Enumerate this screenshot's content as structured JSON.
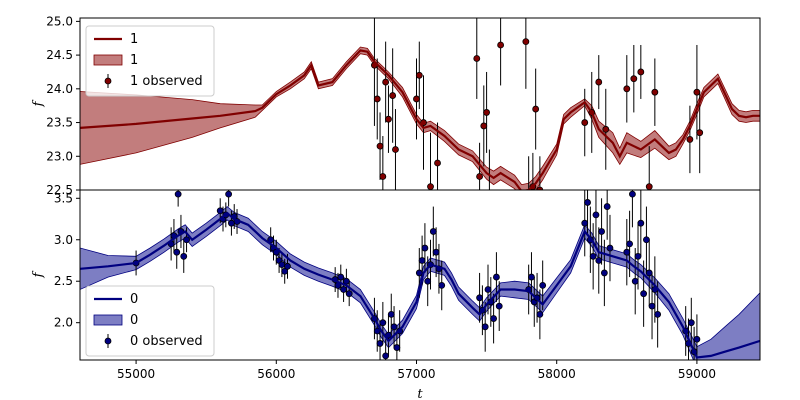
{
  "chart_data": [
    {
      "type": "line",
      "panel": "top",
      "ylabel": "f",
      "xlim": [
        54600,
        59450
      ],
      "ylim": [
        22.5,
        25.05
      ],
      "yticks": [
        22.5,
        23.0,
        23.5,
        24.0,
        24.5,
        25.0
      ],
      "ytick_labels": [
        "22.5",
        "23.0",
        "23.5",
        "24.0",
        "24.5",
        "25.0"
      ],
      "legend_position": "top-left",
      "colors": {
        "line": "#800000",
        "band": "#b35c5c",
        "band_edge": "#800000",
        "points": "#800000"
      },
      "legend": [
        {
          "kind": "line",
          "label": "1"
        },
        {
          "kind": "band",
          "label": "1"
        },
        {
          "kind": "errorbar",
          "label": "1 observed"
        }
      ],
      "series": [
        {
          "name": "1",
          "x": [
            54600,
            55000,
            55400,
            55600,
            55850,
            55900,
            56000,
            56100,
            56200,
            56250,
            56300,
            56400,
            56500,
            56600,
            56650,
            56700,
            56800,
            56900,
            57000,
            57050,
            57100,
            57200,
            57300,
            57400,
            57500,
            57550,
            57600,
            57700,
            57750,
            57800,
            57850,
            57900,
            58000,
            58050,
            58100,
            58200,
            58250,
            58300,
            58400,
            58450,
            58500,
            58600,
            58700,
            58800,
            58850,
            58900,
            58950,
            59000,
            59050,
            59150,
            59250,
            59300,
            59350,
            59400,
            59450
          ],
          "y": [
            23.42,
            23.48,
            23.56,
            23.6,
            23.67,
            23.72,
            23.92,
            24.05,
            24.2,
            24.35,
            24.05,
            24.1,
            24.35,
            24.57,
            24.55,
            24.4,
            24.2,
            23.95,
            23.55,
            23.42,
            23.45,
            23.3,
            23.1,
            23.0,
            22.75,
            22.68,
            22.75,
            22.62,
            22.48,
            22.5,
            22.6,
            22.75,
            23.1,
            23.55,
            23.65,
            23.8,
            23.65,
            23.4,
            23.2,
            23.0,
            23.2,
            23.1,
            23.25,
            23.05,
            23.1,
            23.25,
            23.45,
            23.7,
            23.95,
            24.15,
            23.7,
            23.6,
            23.58,
            23.6,
            23.6
          ],
          "lower": [
            22.88,
            23.05,
            23.28,
            23.42,
            23.58,
            23.68,
            23.88,
            24.0,
            24.15,
            24.3,
            24.0,
            24.05,
            24.3,
            24.52,
            24.5,
            24.35,
            24.15,
            23.88,
            23.48,
            23.35,
            23.38,
            23.22,
            23.02,
            22.92,
            22.66,
            22.58,
            22.65,
            22.52,
            22.38,
            22.4,
            22.5,
            22.65,
            23.02,
            23.48,
            23.58,
            23.75,
            23.55,
            23.28,
            23.05,
            22.88,
            23.05,
            22.98,
            23.12,
            22.95,
            23.0,
            23.18,
            23.38,
            23.62,
            23.88,
            24.08,
            23.62,
            23.52,
            23.5,
            23.52,
            23.52
          ],
          "upper": [
            23.96,
            23.91,
            23.84,
            23.78,
            23.76,
            23.76,
            23.96,
            24.1,
            24.25,
            24.4,
            24.1,
            24.15,
            24.4,
            24.62,
            24.6,
            24.45,
            24.25,
            24.02,
            23.62,
            23.49,
            23.52,
            23.38,
            23.18,
            23.08,
            22.84,
            22.78,
            22.85,
            22.72,
            22.58,
            22.6,
            22.7,
            22.85,
            23.18,
            23.62,
            23.72,
            23.85,
            23.75,
            23.52,
            23.35,
            23.12,
            23.35,
            23.22,
            23.38,
            23.15,
            23.2,
            23.32,
            23.52,
            23.78,
            24.02,
            24.22,
            23.78,
            23.68,
            23.66,
            23.68,
            23.68
          ]
        },
        {
          "name": "1 observed",
          "kind": "errorbar",
          "x": [
            56700,
            56720,
            56740,
            56760,
            56780,
            56800,
            56830,
            56850,
            57000,
            57020,
            57050,
            57100,
            57150,
            57430,
            57450,
            57480,
            57500,
            57520,
            57600,
            57780,
            57800,
            57830,
            57850,
            57880,
            58200,
            58250,
            58300,
            58350,
            58500,
            58550,
            58600,
            58660,
            58700,
            58950,
            59000,
            59020
          ],
          "y": [
            24.35,
            23.85,
            23.15,
            22.7,
            24.1,
            23.55,
            23.9,
            23.1,
            23.85,
            24.2,
            23.5,
            22.55,
            22.9,
            24.45,
            22.7,
            23.45,
            23.65,
            22.4,
            24.65,
            24.7,
            22.4,
            22.55,
            23.7,
            22.5,
            23.5,
            23.65,
            24.1,
            23.4,
            24.0,
            24.15,
            24.25,
            22.55,
            23.95,
            23.25,
            23.95,
            23.35
          ],
          "yerr": [
            0.9,
            0.6,
            0.5,
            0.6,
            0.6,
            0.5,
            0.7,
            0.6,
            0.6,
            0.5,
            0.7,
            0.8,
            0.6,
            0.6,
            0.5,
            0.6,
            0.6,
            0.7,
            0.6,
            0.7,
            0.6,
            0.5,
            0.6,
            0.5,
            0.5,
            0.6,
            0.4,
            0.6,
            0.5,
            0.5,
            0.4,
            0.6,
            0.5,
            0.5,
            0.7,
            0.6
          ]
        }
      ]
    },
    {
      "type": "line",
      "panel": "bottom",
      "xlabel": "t",
      "ylabel": "f",
      "xlim": [
        54600,
        59450
      ],
      "ylim": [
        1.55,
        3.6
      ],
      "yticks": [
        2.0,
        2.5,
        3.0,
        3.5
      ],
      "ytick_labels": [
        "2.0",
        "2.5",
        "3.0",
        "3.5"
      ],
      "xticks": [
        55000,
        56000,
        57000,
        58000,
        59000
      ],
      "xtick_labels": [
        "55000",
        "56000",
        "57000",
        "58000",
        "59000"
      ],
      "legend_position": "bottom-left",
      "colors": {
        "line": "#000080",
        "band": "#6f70bd",
        "band_edge": "#000080",
        "points": "#000080"
      },
      "legend": [
        {
          "kind": "line",
          "label": "0"
        },
        {
          "kind": "band",
          "label": "0"
        },
        {
          "kind": "errorbar",
          "label": "0 observed"
        }
      ],
      "series": [
        {
          "name": "0",
          "x": [
            54600,
            54800,
            55000,
            55100,
            55200,
            55300,
            55350,
            55400,
            55500,
            55600,
            55650,
            55700,
            55800,
            55900,
            56000,
            56100,
            56200,
            56300,
            56400,
            56500,
            56600,
            56700,
            56750,
            56800,
            56900,
            57000,
            57050,
            57100,
            57200,
            57250,
            57300,
            57400,
            57450,
            57500,
            57600,
            57700,
            57800,
            57900,
            58000,
            58100,
            58200,
            58250,
            58300,
            58400,
            58500,
            58550,
            58600,
            58700,
            58800,
            58900,
            59000,
            59100,
            59200,
            59300,
            59450
          ],
          "y": [
            2.65,
            2.68,
            2.72,
            2.82,
            2.93,
            3.05,
            3.1,
            3.0,
            3.12,
            3.25,
            3.32,
            3.25,
            3.18,
            3.02,
            2.9,
            2.75,
            2.65,
            2.58,
            2.52,
            2.45,
            2.32,
            2.05,
            1.9,
            1.78,
            1.95,
            2.25,
            2.6,
            2.7,
            2.65,
            2.52,
            2.35,
            2.18,
            2.1,
            2.22,
            2.4,
            2.4,
            2.38,
            2.22,
            2.45,
            2.68,
            3.1,
            3.0,
            2.85,
            2.8,
            2.75,
            2.68,
            2.62,
            2.45,
            2.25,
            1.95,
            1.58,
            1.6,
            1.65,
            1.7,
            1.78
          ],
          "lower": [
            2.4,
            2.55,
            2.64,
            2.74,
            2.85,
            2.97,
            3.02,
            2.92,
            3.04,
            3.17,
            3.24,
            3.17,
            3.1,
            2.94,
            2.82,
            2.67,
            2.57,
            2.5,
            2.44,
            2.37,
            2.24,
            1.97,
            1.82,
            1.7,
            1.87,
            2.17,
            2.52,
            2.62,
            2.57,
            2.44,
            2.27,
            2.1,
            2.02,
            2.14,
            2.32,
            2.3,
            2.28,
            2.12,
            2.36,
            2.6,
            3.02,
            2.92,
            2.77,
            2.72,
            2.67,
            2.6,
            2.54,
            2.36,
            2.15,
            1.85,
            1.45,
            1.4,
            1.35,
            1.3,
            1.2
          ],
          "upper": [
            2.9,
            2.81,
            2.8,
            2.9,
            3.01,
            3.13,
            3.18,
            3.08,
            3.2,
            3.33,
            3.4,
            3.33,
            3.26,
            3.1,
            2.98,
            2.83,
            2.73,
            2.66,
            2.6,
            2.53,
            2.4,
            2.13,
            1.98,
            1.86,
            2.03,
            2.33,
            2.68,
            2.78,
            2.73,
            2.6,
            2.43,
            2.26,
            2.18,
            2.3,
            2.48,
            2.5,
            2.48,
            2.32,
            2.54,
            2.76,
            3.18,
            3.08,
            2.93,
            2.88,
            2.83,
            2.76,
            2.7,
            2.54,
            2.35,
            2.05,
            1.71,
            1.8,
            1.95,
            2.1,
            2.36
          ]
        },
        {
          "name": "0 observed",
          "kind": "errorbar",
          "x": [
            55000,
            55250,
            55270,
            55290,
            55300,
            55320,
            55340,
            55360,
            55600,
            55620,
            55640,
            55660,
            55680,
            55700,
            55720,
            55960,
            55980,
            56000,
            56020,
            56040,
            56060,
            56080,
            56420,
            56440,
            56460,
            56480,
            56500,
            56520,
            56700,
            56720,
            56740,
            56760,
            56780,
            56800,
            56820,
            56840,
            56860,
            56880,
            57020,
            57040,
            57060,
            57080,
            57100,
            57120,
            57140,
            57160,
            57180,
            57450,
            57470,
            57490,
            57510,
            57530,
            57550,
            57570,
            57590,
            57800,
            57820,
            57840,
            57860,
            57880,
            57900,
            58200,
            58220,
            58240,
            58260,
            58280,
            58300,
            58320,
            58340,
            58360,
            58380,
            58500,
            58520,
            58540,
            58560,
            58580,
            58600,
            58620,
            58640,
            58660,
            58680,
            58700,
            58720,
            58920,
            58940,
            58960,
            58980,
            59000
          ],
          "y": [
            2.72,
            2.95,
            3.05,
            2.85,
            3.55,
            3.1,
            2.8,
            3.0,
            3.35,
            3.25,
            3.3,
            3.55,
            3.2,
            3.28,
            3.22,
            3.0,
            2.9,
            2.85,
            2.75,
            2.7,
            2.62,
            2.68,
            2.52,
            2.45,
            2.55,
            2.4,
            2.5,
            2.35,
            2.05,
            1.9,
            1.75,
            2.0,
            1.6,
            1.85,
            2.1,
            1.95,
            1.7,
            1.9,
            2.6,
            2.75,
            2.9,
            2.5,
            2.7,
            3.1,
            2.85,
            2.65,
            2.45,
            2.3,
            2.15,
            1.95,
            2.4,
            2.25,
            2.05,
            2.55,
            2.2,
            2.4,
            2.55,
            2.25,
            2.3,
            2.1,
            2.45,
            3.2,
            3.45,
            3.0,
            2.8,
            3.3,
            2.75,
            3.1,
            2.6,
            3.4,
            2.9,
            2.85,
            2.95,
            3.55,
            2.5,
            2.8,
            3.2,
            2.35,
            3.0,
            2.6,
            2.2,
            2.4,
            2.1,
            1.9,
            1.75,
            2.0,
            1.65,
            1.8
          ],
          "yerr": [
            0.15,
            0.2,
            0.2,
            0.2,
            0.15,
            0.2,
            0.2,
            0.15,
            0.15,
            0.15,
            0.15,
            0.15,
            0.15,
            0.15,
            0.15,
            0.15,
            0.15,
            0.15,
            0.15,
            0.15,
            0.15,
            0.15,
            0.15,
            0.15,
            0.15,
            0.15,
            0.15,
            0.15,
            0.25,
            0.25,
            0.25,
            0.25,
            0.2,
            0.25,
            0.25,
            0.25,
            0.2,
            0.25,
            0.3,
            0.3,
            0.3,
            0.3,
            0.3,
            0.3,
            0.3,
            0.3,
            0.3,
            0.3,
            0.3,
            0.3,
            0.3,
            0.3,
            0.3,
            0.3,
            0.3,
            0.3,
            0.3,
            0.3,
            0.3,
            0.3,
            0.3,
            0.4,
            0.4,
            0.4,
            0.4,
            0.4,
            0.4,
            0.4,
            0.4,
            0.4,
            0.4,
            0.4,
            0.4,
            0.4,
            0.4,
            0.4,
            0.4,
            0.4,
            0.4,
            0.4,
            0.4,
            0.4,
            0.4,
            0.3,
            0.3,
            0.3,
            0.3,
            0.3
          ]
        }
      ]
    }
  ]
}
